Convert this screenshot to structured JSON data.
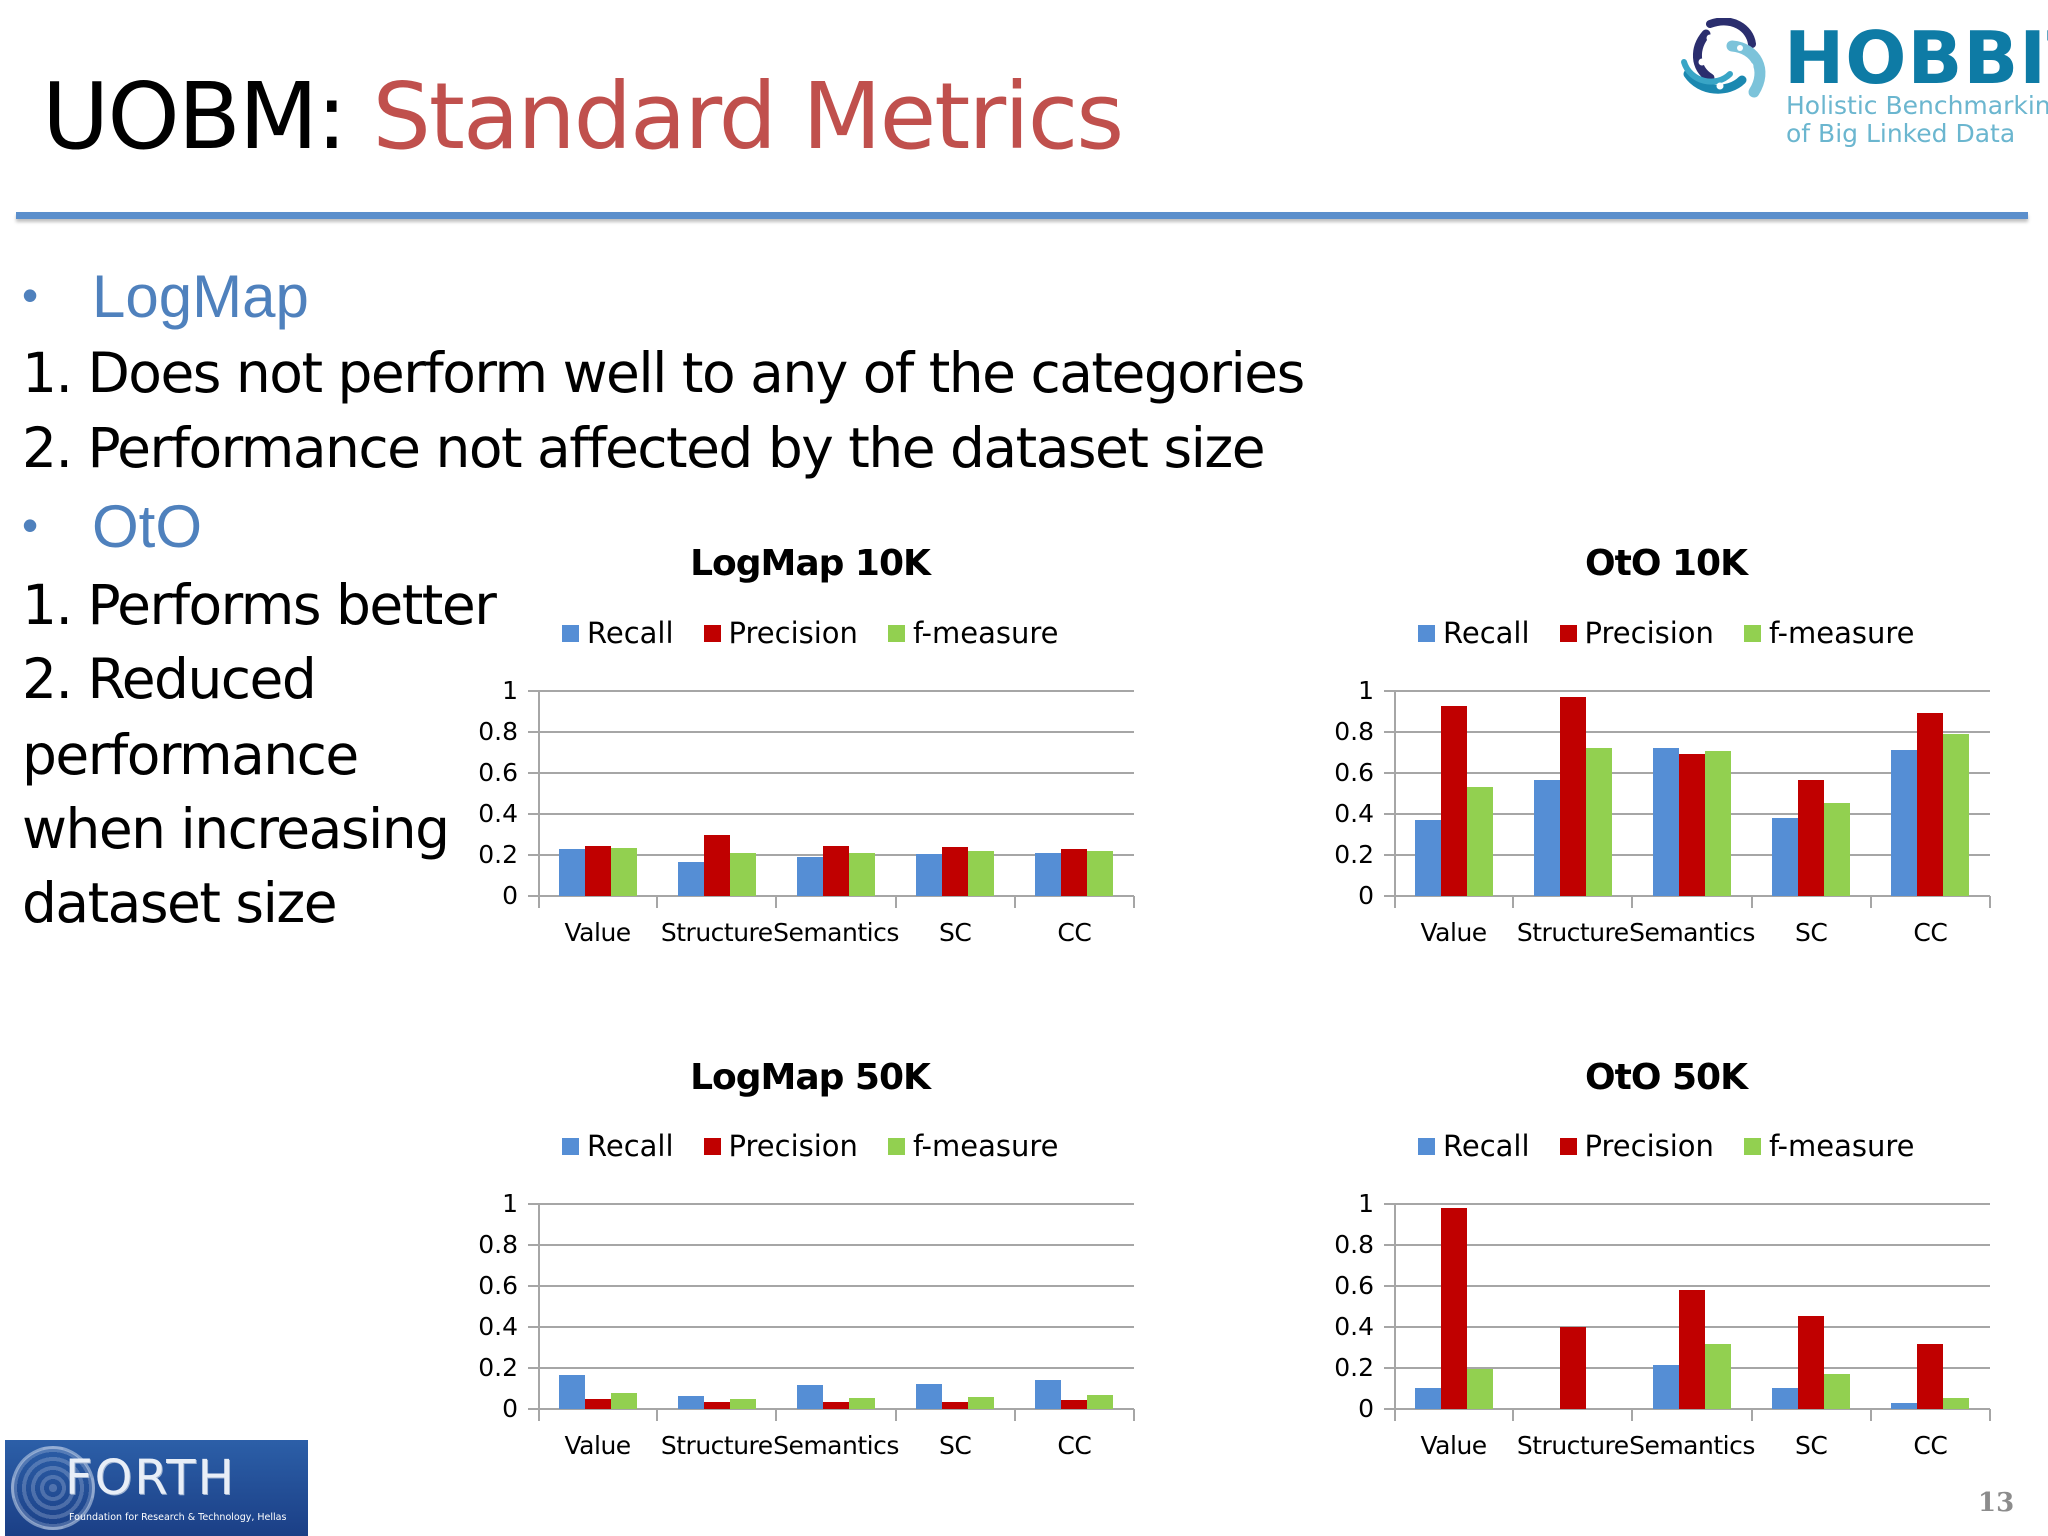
{
  "slide": {
    "title_prefix": "UOBM:",
    "title_main": "Standard Metrics",
    "page_number": "13",
    "colors": {
      "title_red": "#C0504D",
      "accent_blue": "#4F81BD",
      "rule_blue": "#5B8FCC",
      "recall": "#558ED5",
      "precision": "#C00000",
      "f_measure": "#92D050",
      "grid": "#A6A6A6"
    }
  },
  "logos": {
    "hobbit": {
      "word": "HOBBIT",
      "line1": "Holistic Benchmarking",
      "line2": "of Big Linked Data"
    },
    "forth": {
      "word": "FORTH",
      "subtitle": "Foundation for Research & Technology, Hellas"
    }
  },
  "bullets": {
    "logmap": {
      "dot": "•",
      "heading": "LogMap",
      "items": [
        "1. Does not perform well to any of the categories",
        "2. Performance not affected by the dataset size"
      ]
    },
    "oto": {
      "dot": "•",
      "heading": "OtO",
      "items": [
        "1. Performs better",
        "2. Reduced",
        "performance",
        "when increasing",
        "dataset size"
      ]
    }
  },
  "chart_data": [
    {
      "type": "bar",
      "title": "LogMap 10K",
      "categories": [
        "Value",
        "Structure",
        "Semantics",
        "SC",
        "CC"
      ],
      "series": [
        {
          "name": "Recall",
          "values": [
            0.23,
            0.165,
            0.19,
            0.205,
            0.21
          ]
        },
        {
          "name": "Precision",
          "values": [
            0.245,
            0.3,
            0.245,
            0.24,
            0.23
          ]
        },
        {
          "name": "f-measure",
          "values": [
            0.235,
            0.21,
            0.21,
            0.22,
            0.22
          ]
        }
      ],
      "xlabel": "",
      "ylabel": "",
      "yticks": [
        "1",
        "0.8",
        "0.6",
        "0.4",
        "0.2",
        "0"
      ],
      "ylim": [
        0,
        1
      ],
      "grid": true,
      "legend_position": "top"
    },
    {
      "type": "bar",
      "title": "OtO 10K",
      "categories": [
        "Value",
        "Structure",
        "Semantics",
        "SC",
        "CC"
      ],
      "series": [
        {
          "name": "Recall",
          "values": [
            0.37,
            0.567,
            0.72,
            0.383,
            0.712
          ]
        },
        {
          "name": "Precision",
          "values": [
            0.925,
            0.97,
            0.695,
            0.567,
            0.894
          ]
        },
        {
          "name": "f-measure",
          "values": [
            0.53,
            0.72,
            0.707,
            0.455,
            0.79
          ]
        }
      ],
      "xlabel": "",
      "ylabel": "",
      "yticks": [
        "1",
        "0.8",
        "0.6",
        "0.4",
        "0.2",
        "0"
      ],
      "ylim": [
        0,
        1
      ],
      "grid": true,
      "legend_position": "top"
    },
    {
      "type": "bar",
      "title": "LogMap 50K",
      "categories": [
        "Value",
        "Structure",
        "Semantics",
        "SC",
        "CC"
      ],
      "series": [
        {
          "name": "Recall",
          "values": [
            0.165,
            0.065,
            0.116,
            0.12,
            0.142
          ]
        },
        {
          "name": "Precision",
          "values": [
            0.047,
            0.036,
            0.036,
            0.036,
            0.042
          ]
        },
        {
          "name": "f-measure",
          "values": [
            0.077,
            0.047,
            0.054,
            0.06,
            0.07
          ]
        }
      ],
      "xlabel": "",
      "ylabel": "",
      "yticks": [
        "1",
        "0.8",
        "0.6",
        "0.4",
        "0.2",
        "0"
      ],
      "ylim": [
        0,
        1
      ],
      "grid": true,
      "legend_position": "top"
    },
    {
      "type": "bar",
      "title": "OtO 50K",
      "categories": [
        "Value",
        "Structure",
        "Semantics",
        "SC",
        "CC"
      ],
      "series": [
        {
          "name": "Recall",
          "values": [
            0.104,
            0.0,
            0.215,
            0.104,
            0.031
          ]
        },
        {
          "name": "Precision",
          "values": [
            0.98,
            0.398,
            0.582,
            0.455,
            0.315
          ]
        },
        {
          "name": "f-measure",
          "values": [
            0.194,
            0.0,
            0.315,
            0.171,
            0.054
          ]
        }
      ],
      "xlabel": "",
      "ylabel": "",
      "yticks": [
        "1",
        "0.8",
        "0.6",
        "0.4",
        "0.2",
        "0"
      ],
      "ylim": [
        0,
        1
      ],
      "grid": true,
      "legend_position": "top"
    }
  ]
}
